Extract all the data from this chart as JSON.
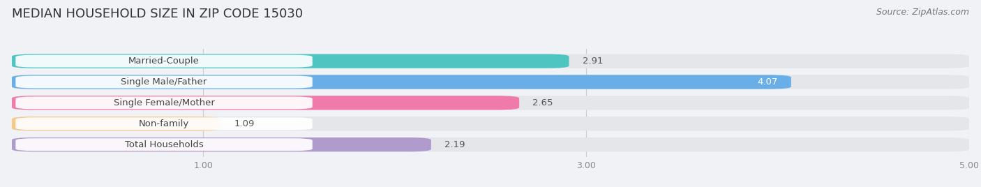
{
  "title": "MEDIAN HOUSEHOLD SIZE IN ZIP CODE 15030",
  "source": "Source: ZipAtlas.com",
  "categories": [
    "Married-Couple",
    "Single Male/Father",
    "Single Female/Mother",
    "Non-family",
    "Total Households"
  ],
  "values": [
    2.91,
    4.07,
    2.65,
    1.09,
    2.19
  ],
  "bar_colors": [
    "#4ec5c1",
    "#6aaee8",
    "#f07aaa",
    "#f5c98a",
    "#b09ccc"
  ],
  "value_colors": [
    "#555555",
    "#ffffff",
    "#555555",
    "#555555",
    "#555555"
  ],
  "value_inside": [
    false,
    true,
    false,
    false,
    false
  ],
  "xlim": [
    0,
    5.0
  ],
  "xticks": [
    1.0,
    3.0,
    5.0
  ],
  "background_color": "#f0f2f5",
  "bar_bg_color": "#e4e6ea",
  "title_fontsize": 13,
  "source_fontsize": 9,
  "label_fontsize": 9.5,
  "value_fontsize": 9.5,
  "bar_height": 0.68,
  "figure_width": 14.06,
  "figure_height": 2.68
}
